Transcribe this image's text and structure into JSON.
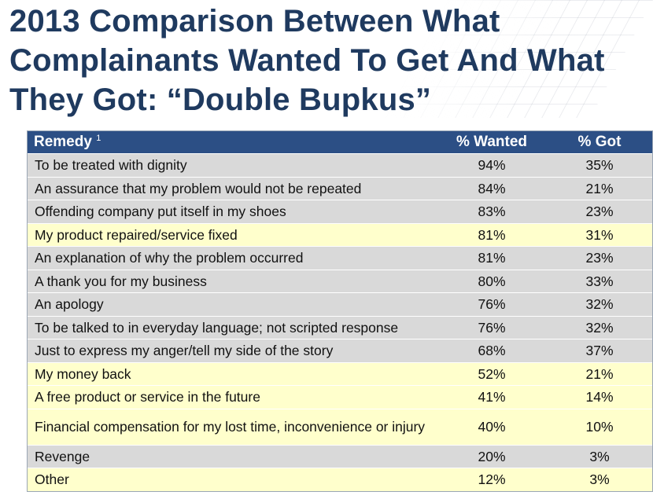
{
  "title": {
    "line1": "2013 Comparison Between What",
    "line2": "Complainants Wanted To Get And What",
    "line3": "They Got: “Double Bupkus”"
  },
  "table": {
    "headers": {
      "remedy": "Remedy",
      "footnote": "1",
      "wanted": "% Wanted",
      "got": "% Got"
    },
    "rows": [
      {
        "remedy": "To be treated with dignity",
        "wanted": "94%",
        "got": "35%",
        "shade": "grey"
      },
      {
        "remedy": "An assurance that my problem would not be repeated",
        "wanted": "84%",
        "got": "21%",
        "shade": "grey"
      },
      {
        "remedy": "Offending company put itself in my shoes",
        "wanted": "83%",
        "got": "23%",
        "shade": "grey"
      },
      {
        "remedy": "My product repaired/service fixed",
        "wanted": "81%",
        "got": "31%",
        "shade": "yellow"
      },
      {
        "remedy": "An explanation of why the problem occurred",
        "wanted": "81%",
        "got": "23%",
        "shade": "grey"
      },
      {
        "remedy": "A thank you for my business",
        "wanted": "80%",
        "got": "33%",
        "shade": "grey"
      },
      {
        "remedy": "An apology",
        "wanted": "76%",
        "got": "32%",
        "shade": "grey"
      },
      {
        "remedy": "To be talked to in everyday language; not scripted response",
        "wanted": "76%",
        "got": "32%",
        "shade": "grey"
      },
      {
        "remedy": "Just to express my anger/tell my side of the story",
        "wanted": "68%",
        "got": "37%",
        "shade": "grey"
      },
      {
        "remedy": "My money back",
        "wanted": "52%",
        "got": "21%",
        "shade": "yellow"
      },
      {
        "remedy": "A free product or service in the future",
        "wanted": "41%",
        "got": "14%",
        "shade": "yellow"
      },
      {
        "remedy": "Financial compensation for my lost time, inconvenience or injury",
        "wanted": "40%",
        "got": "10%",
        "shade": "yellow"
      },
      {
        "remedy": "Revenge",
        "wanted": "20%",
        "got": "3%",
        "shade": "grey"
      },
      {
        "remedy": "Other",
        "wanted": "12%",
        "got": "3%",
        "shade": "yellow"
      }
    ]
  }
}
